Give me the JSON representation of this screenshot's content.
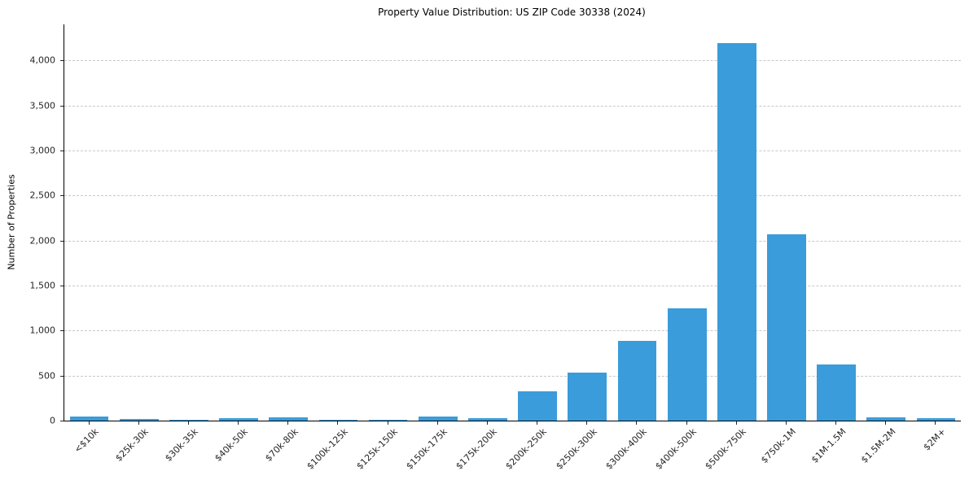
{
  "colors": {
    "bar": "#3a9cda",
    "grid": "#c9c9c9",
    "background": "#ffffff",
    "axis": "#000000"
  },
  "chart_data": {
    "type": "bar",
    "title": "Property Value Distribution: US ZIP Code 30338 (2024)",
    "xlabel": "",
    "ylabel": "Number of Properties",
    "categories": [
      "<$10k",
      "$25k-30k",
      "$30k-35k",
      "$40k-50k",
      "$70k-80k",
      "$100k-125k",
      "$125k-150k",
      "$150k-175k",
      "$175k-200k",
      "$200k-250k",
      "$250k-300k",
      "$300k-400k",
      "$400k-500k",
      "$500k-750k",
      "$750k-1M",
      "$1M-1.5M",
      "$1.5M-2M",
      "$2M+"
    ],
    "values": [
      45,
      20,
      8,
      30,
      35,
      8,
      10,
      45,
      25,
      325,
      530,
      885,
      1245,
      4190,
      2070,
      620,
      35,
      25
    ],
    "ylim": [
      0,
      4400
    ],
    "yticks": [
      0,
      500,
      1000,
      1500,
      2000,
      2500,
      3000,
      3500,
      4000
    ],
    "ytick_labels": [
      "0",
      "500",
      "1,000",
      "1,500",
      "2,000",
      "2,500",
      "3,000",
      "3,500",
      "4,000"
    ],
    "grid": "horizontal dashed",
    "legend": "none",
    "bar_color": "#3a9cda"
  }
}
